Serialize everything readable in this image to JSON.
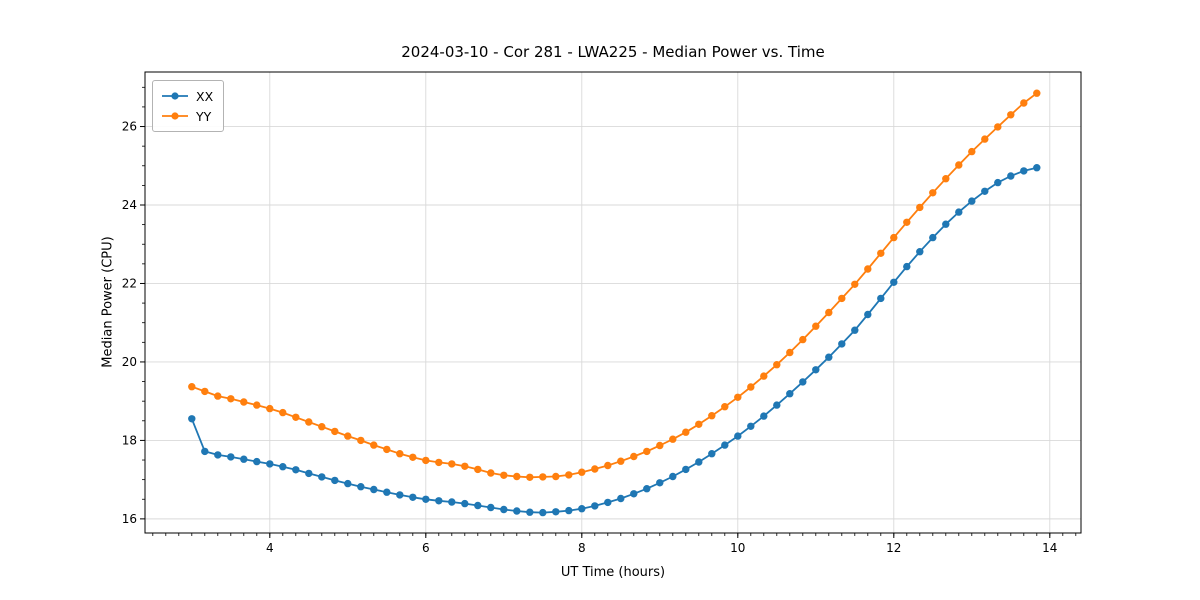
{
  "figure": {
    "title": "2024-03-10 - Cor 281 - LWA225 - Median Power vs. Time",
    "xlabel": "UT Time (hours)",
    "ylabel": "Median Power (CPU)",
    "background": "#ffffff"
  },
  "legend": {
    "items": [
      {
        "label": "XX",
        "color": "#1f77b4"
      },
      {
        "label": "YY",
        "color": "#ff7f0e"
      }
    ]
  },
  "chart_data": {
    "type": "line",
    "title": "2024-03-10 - Cor 281 - LWA225 - Median Power vs. Time",
    "xlabel": "UT Time (hours)",
    "ylabel": "Median Power (CPU)",
    "xlim": [
      2.4,
      14.4
    ],
    "ylim": [
      15.64,
      27.39
    ],
    "x_ticks": [
      4,
      6,
      8,
      10,
      12,
      14
    ],
    "y_ticks": [
      16,
      18,
      20,
      22,
      24,
      26
    ],
    "x_minor_step": 0.166667,
    "y_minor_step": 0.5,
    "grid": true,
    "grid_color": "#d9d9d9",
    "legend_position": "upper left",
    "marker": "circle",
    "x": [
      3.0,
      3.167,
      3.333,
      3.5,
      3.667,
      3.833,
      4.0,
      4.167,
      4.333,
      4.5,
      4.667,
      4.833,
      5.0,
      5.167,
      5.333,
      5.5,
      5.667,
      5.833,
      6.0,
      6.167,
      6.333,
      6.5,
      6.667,
      6.833,
      7.0,
      7.167,
      7.333,
      7.5,
      7.667,
      7.833,
      8.0,
      8.167,
      8.333,
      8.5,
      8.667,
      8.833,
      9.0,
      9.167,
      9.333,
      9.5,
      9.667,
      9.833,
      10.0,
      10.167,
      10.333,
      10.5,
      10.667,
      10.833,
      11.0,
      11.167,
      11.333,
      11.5,
      11.667,
      11.833,
      12.0,
      12.167,
      12.333,
      12.5,
      12.667,
      12.833,
      13.0,
      13.167,
      13.333,
      13.5,
      13.667,
      13.833
    ],
    "series": [
      {
        "name": "XX",
        "color": "#1f77b4",
        "values": [
          18.55,
          17.72,
          17.63,
          17.58,
          17.52,
          17.46,
          17.4,
          17.33,
          17.25,
          17.16,
          17.07,
          16.98,
          16.9,
          16.82,
          16.75,
          16.68,
          16.61,
          16.55,
          16.5,
          16.46,
          16.43,
          16.39,
          16.34,
          16.29,
          16.24,
          16.2,
          16.17,
          16.16,
          16.18,
          16.21,
          16.26,
          16.33,
          16.42,
          16.52,
          16.64,
          16.77,
          16.92,
          17.08,
          17.26,
          17.45,
          17.66,
          17.88,
          18.11,
          18.36,
          18.62,
          18.9,
          19.19,
          19.49,
          19.8,
          20.12,
          20.46,
          20.81,
          21.21,
          21.62,
          22.03,
          22.43,
          22.81,
          23.17,
          23.51,
          23.82,
          24.1,
          24.35,
          24.57,
          24.74,
          24.87,
          24.95
        ]
      },
      {
        "name": "YY",
        "color": "#ff7f0e",
        "values": [
          19.37,
          19.25,
          19.13,
          19.06,
          18.98,
          18.9,
          18.81,
          18.71,
          18.59,
          18.47,
          18.35,
          18.23,
          18.11,
          18.0,
          17.88,
          17.77,
          17.66,
          17.57,
          17.49,
          17.44,
          17.4,
          17.34,
          17.26,
          17.17,
          17.11,
          17.08,
          17.06,
          17.07,
          17.08,
          17.12,
          17.19,
          17.27,
          17.36,
          17.47,
          17.59,
          17.72,
          17.87,
          18.03,
          18.21,
          18.41,
          18.63,
          18.86,
          19.1,
          19.36,
          19.64,
          19.93,
          20.24,
          20.57,
          20.91,
          21.26,
          21.62,
          21.98,
          22.37,
          22.77,
          23.17,
          23.56,
          23.94,
          24.31,
          24.67,
          25.02,
          25.36,
          25.68,
          25.99,
          26.3,
          26.6,
          26.85
        ]
      }
    ]
  }
}
